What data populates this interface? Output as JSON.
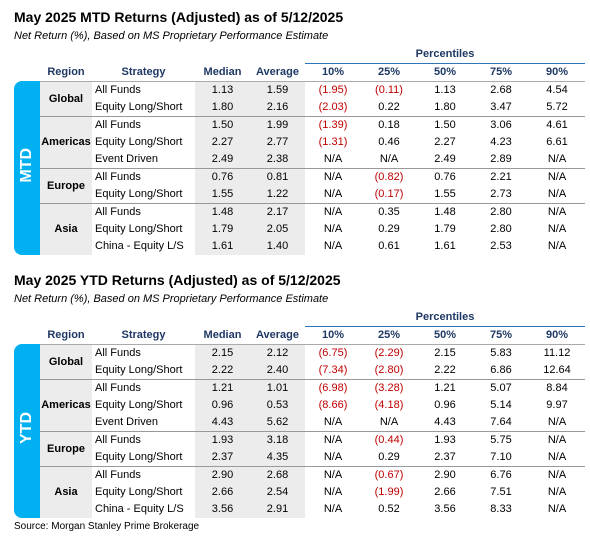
{
  "tables": [
    {
      "title": "May 2025 MTD Returns (Adjusted) as of 5/12/2025",
      "subtitle": "Net Return (%), Based on MS Proprietary Performance Estimate",
      "side_label": "MTD",
      "percentiles_label": "Percentiles",
      "columns": [
        "Region",
        "Strategy",
        "Median",
        "Average",
        "10%",
        "25%",
        "50%",
        "75%",
        "90%"
      ],
      "groups": [
        {
          "region": "Global",
          "rows": [
            [
              "All Funds",
              "1.13",
              "1.59",
              "(1.95)",
              "(0.11)",
              "1.13",
              "2.68",
              "4.54"
            ],
            [
              "Equity Long/Short",
              "1.80",
              "2.16",
              "(2.03)",
              "0.22",
              "1.80",
              "3.47",
              "5.72"
            ]
          ]
        },
        {
          "region": "Americas",
          "rows": [
            [
              "All Funds",
              "1.50",
              "1.99",
              "(1.39)",
              "0.18",
              "1.50",
              "3.06",
              "4.61"
            ],
            [
              "Equity Long/Short",
              "2.27",
              "2.77",
              "(1.31)",
              "0.46",
              "2.27",
              "4.23",
              "6.61"
            ],
            [
              "Event Driven",
              "2.49",
              "2.38",
              "N/A",
              "N/A",
              "2.49",
              "2.89",
              "N/A"
            ]
          ]
        },
        {
          "region": "Europe",
          "rows": [
            [
              "All Funds",
              "0.76",
              "0.81",
              "N/A",
              "(0.82)",
              "0.76",
              "2.21",
              "N/A"
            ],
            [
              "Equity Long/Short",
              "1.55",
              "1.22",
              "N/A",
              "(0.17)",
              "1.55",
              "2.73",
              "N/A"
            ]
          ]
        },
        {
          "region": "Asia",
          "rows": [
            [
              "All Funds",
              "1.48",
              "2.17",
              "N/A",
              "0.35",
              "1.48",
              "2.80",
              "N/A"
            ],
            [
              "Equity Long/Short",
              "1.79",
              "2.05",
              "N/A",
              "0.29",
              "1.79",
              "2.80",
              "N/A"
            ],
            [
              "China - Equity L/S",
              "1.61",
              "1.40",
              "N/A",
              "0.61",
              "1.61",
              "2.53",
              "N/A"
            ]
          ]
        }
      ]
    },
    {
      "title": "May 2025 YTD Returns (Adjusted) as of 5/12/2025",
      "subtitle": "Net Return (%), Based on MS Proprietary Performance Estimate",
      "side_label": "YTD",
      "percentiles_label": "Percentiles",
      "columns": [
        "Region",
        "Strategy",
        "Median",
        "Average",
        "10%",
        "25%",
        "50%",
        "75%",
        "90%"
      ],
      "groups": [
        {
          "region": "Global",
          "rows": [
            [
              "All Funds",
              "2.15",
              "2.12",
              "(6.75)",
              "(2.29)",
              "2.15",
              "5.83",
              "11.12"
            ],
            [
              "Equity Long/Short",
              "2.22",
              "2.40",
              "(7.34)",
              "(2.80)",
              "2.22",
              "6.86",
              "12.64"
            ]
          ]
        },
        {
          "region": "Americas",
          "rows": [
            [
              "All Funds",
              "1.21",
              "1.01",
              "(6.98)",
              "(3.28)",
              "1.21",
              "5.07",
              "8.84"
            ],
            [
              "Equity Long/Short",
              "0.96",
              "0.53",
              "(8.66)",
              "(4.18)",
              "0.96",
              "5.14",
              "9.97"
            ],
            [
              "Event Driven",
              "4.43",
              "5.62",
              "N/A",
              "N/A",
              "4.43",
              "7.64",
              "N/A"
            ]
          ]
        },
        {
          "region": "Europe",
          "rows": [
            [
              "All Funds",
              "1.93",
              "3.18",
              "N/A",
              "(0.44)",
              "1.93",
              "5.75",
              "N/A"
            ],
            [
              "Equity Long/Short",
              "2.37",
              "4.35",
              "N/A",
              "0.29",
              "2.37",
              "7.10",
              "N/A"
            ]
          ]
        },
        {
          "region": "Asia",
          "rows": [
            [
              "All Funds",
              "2.90",
              "2.68",
              "N/A",
              "(0.67)",
              "2.90",
              "6.76",
              "N/A"
            ],
            [
              "Equity Long/Short",
              "2.66",
              "2.54",
              "N/A",
              "(1.99)",
              "2.66",
              "7.51",
              "N/A"
            ],
            [
              "China - Equity L/S",
              "3.56",
              "2.91",
              "N/A",
              "0.52",
              "3.56",
              "8.33",
              "N/A"
            ]
          ]
        }
      ]
    }
  ],
  "source": "Source: Morgan Stanley Prime Brokerage"
}
